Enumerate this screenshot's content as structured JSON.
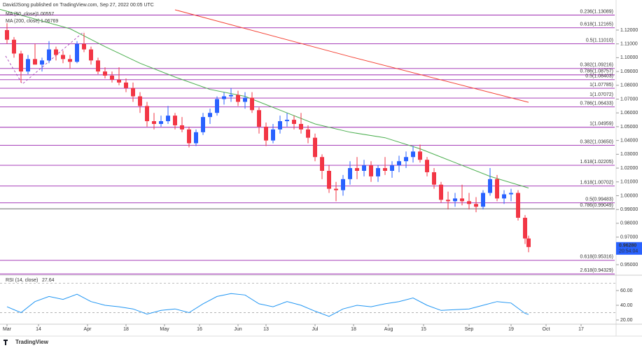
{
  "header": "DavidJSong published on TradingView.com, Sep 27, 2022 00:05 UTC",
  "brand": "TradingView",
  "chart_data": [
    {
      "type": "candlestick",
      "up_color": "#2962ff",
      "down_color": "#f23645",
      "x": [
        0,
        2,
        4,
        6,
        8,
        10,
        12,
        14,
        16,
        18,
        20,
        22,
        24,
        26,
        28,
        30,
        32,
        34,
        36,
        38,
        40,
        42,
        44,
        46,
        48,
        50,
        52,
        54,
        56,
        58,
        60,
        62,
        64,
        66,
        68,
        70,
        72,
        74,
        76,
        78,
        80,
        82,
        84,
        86,
        88,
        90,
        92,
        94,
        96,
        98,
        100,
        102,
        104,
        106,
        108,
        110,
        112,
        114,
        116,
        118,
        120,
        122,
        124,
        126,
        128,
        130,
        132,
        134,
        136,
        138,
        140,
        142,
        144,
        146,
        148,
        149
      ],
      "open": [
        1.12,
        1.113,
        1.103,
        1.09,
        1.099,
        1.095,
        1.098,
        1.106,
        1.102,
        1.099,
        1.097,
        1.11,
        1.106,
        1.098,
        1.09,
        1.087,
        1.084,
        1.082,
        1.078,
        1.072,
        1.065,
        1.054,
        1.052,
        1.054,
        1.058,
        1.051,
        1.048,
        1.038,
        1.046,
        1.057,
        1.06,
        1.07,
        1.072,
        1.073,
        1.068,
        1.071,
        1.062,
        1.05,
        1.04,
        1.048,
        1.054,
        1.055,
        1.052,
        1.048,
        1.042,
        1.028,
        1.018,
        1.005,
        1.004,
        1.012,
        1.02,
        1.018,
        1.022,
        1.014,
        1.02,
        1.018,
        1.022,
        1.025,
        1.028,
        1.032,
        1.026,
        1.017,
        1.008,
        0.997,
        0.996,
        0.998,
        0.996,
        0.994,
        0.992,
        1.002,
        1.012,
        0.998,
        1.001,
        1.002,
        0.984,
        0.969
      ],
      "high": [
        1.125,
        1.115,
        1.105,
        1.102,
        1.11,
        1.1,
        1.112,
        1.108,
        1.105,
        1.102,
        1.112,
        1.118,
        1.108,
        1.1,
        1.093,
        1.09,
        1.093,
        1.085,
        1.082,
        1.075,
        1.068,
        1.06,
        1.058,
        1.065,
        1.06,
        1.057,
        1.05,
        1.048,
        1.06,
        1.063,
        1.072,
        1.075,
        1.078,
        1.076,
        1.075,
        1.075,
        1.064,
        1.053,
        1.052,
        1.058,
        1.06,
        1.058,
        1.06,
        1.051,
        1.045,
        1.03,
        1.022,
        1.01,
        1.015,
        1.025,
        1.028,
        1.026,
        1.025,
        1.022,
        1.028,
        1.025,
        1.029,
        1.032,
        1.036,
        1.037,
        1.028,
        1.02,
        1.01,
        1.003,
        1.002,
        1.008,
        1.002,
        0.999,
        1.004,
        1.02,
        1.015,
        1.004,
        1.005,
        1.004,
        0.986,
        0.971
      ],
      "low": [
        1.11,
        1.1,
        1.082,
        1.088,
        1.095,
        1.09,
        1.096,
        1.098,
        1.096,
        1.092,
        1.096,
        1.104,
        1.095,
        1.088,
        1.085,
        1.082,
        1.08,
        1.075,
        1.068,
        1.06,
        1.05,
        1.048,
        1.05,
        1.052,
        1.048,
        1.046,
        1.035,
        1.036,
        1.044,
        1.052,
        1.058,
        1.066,
        1.068,
        1.065,
        1.063,
        1.06,
        1.045,
        1.036,
        1.038,
        1.045,
        1.05,
        1.048,
        1.045,
        1.038,
        1.025,
        1.012,
        1.002,
        0.996,
        1.0,
        1.008,
        1.012,
        1.014,
        1.01,
        1.01,
        1.015,
        1.013,
        1.017,
        1.02,
        1.024,
        1.024,
        1.014,
        1.005,
        0.995,
        0.99,
        0.992,
        0.993,
        0.99,
        0.988,
        0.99,
        1.0,
        0.996,
        0.994,
        0.996,
        0.982,
        0.965,
        0.959
      ],
      "close": [
        1.113,
        1.103,
        1.09,
        1.099,
        1.095,
        1.098,
        1.106,
        1.102,
        1.099,
        1.097,
        1.11,
        1.106,
        1.098,
        1.09,
        1.087,
        1.084,
        1.082,
        1.078,
        1.072,
        1.065,
        1.054,
        1.052,
        1.054,
        1.058,
        1.051,
        1.048,
        1.038,
        1.046,
        1.057,
        1.06,
        1.07,
        1.072,
        1.073,
        1.068,
        1.071,
        1.062,
        1.05,
        1.04,
        1.048,
        1.054,
        1.055,
        1.052,
        1.048,
        1.042,
        1.028,
        1.018,
        1.005,
        1.004,
        1.012,
        1.02,
        1.018,
        1.022,
        1.014,
        1.02,
        1.018,
        1.022,
        1.025,
        1.028,
        1.032,
        1.026,
        1.017,
        1.008,
        0.997,
        0.996,
        0.998,
        0.996,
        0.994,
        0.992,
        1.002,
        1.012,
        0.998,
        1.001,
        1.002,
        0.984,
        0.969,
        0.9628
      ],
      "last_price_label": "0.96280",
      "countdown": "20:54:04",
      "lines": [
        {
          "name": "MA (50, close)",
          "color": "#4caf50",
          "value_label": "1.00557",
          "x": [
            -2,
            8,
            18,
            28,
            38,
            48,
            58,
            68,
            78,
            88,
            98,
            108,
            118,
            128,
            138,
            149
          ],
          "values": [
            1.135,
            1.128,
            1.121,
            1.108,
            1.096,
            1.086,
            1.077,
            1.072,
            1.062,
            1.052,
            1.046,
            1.042,
            1.034,
            1.024,
            1.014,
            1.00557
          ]
        },
        {
          "name": "MA (200, close)",
          "color": "#f44336",
          "value_label": "1.06769",
          "x": [
            48,
            98,
            149
          ],
          "values": [
            1.1347,
            1.1008,
            1.06769
          ]
        }
      ],
      "levels": [
        {
          "label": "0.236(1.13089)",
          "value": 1.13089,
          "color": "#9c27b0"
        },
        {
          "label": "0.618(1.12165)",
          "value": 1.12165,
          "color": "#9c27b0"
        },
        {
          "label": "0.5(1.11010)",
          "value": 1.1101,
          "color": "#9c27b0"
        },
        {
          "label": "0.382(1.09216)",
          "value": 1.09216,
          "color": "#9c27b0"
        },
        {
          "label": "0.786(1.08757)",
          "value": 1.08757,
          "color": "#9c27b0"
        },
        {
          "label": "0.5(1.08403)",
          "value": 1.08403,
          "color": "#9c27b0"
        },
        {
          "label": "1(1.07785)",
          "value": 1.07785,
          "color": "#9c27b0"
        },
        {
          "label": "1(1.07072)",
          "value": 1.07072,
          "color": "#9c27b0"
        },
        {
          "label": "0.786(1.06433)",
          "value": 1.06433,
          "color": "#9c27b0"
        },
        {
          "label": "1(1.04959)",
          "value": 1.04959,
          "color": "#9c27b0"
        },
        {
          "label": "0.382(1.03650)",
          "value": 1.0365,
          "color": "#9c27b0"
        },
        {
          "label": "1.618(1.02205)",
          "value": 1.02205,
          "color": "#9c27b0"
        },
        {
          "label": "1.618(1.00702)",
          "value": 1.00702,
          "color": "#9c27b0"
        },
        {
          "label": "0.5(0.99483)",
          "value": 0.99483,
          "color": "#9c27b0"
        },
        {
          "label": "0.786(0.99049)",
          "value": 0.99049,
          "color": "#555555"
        },
        {
          "label": "0.618(0.95316)",
          "value": 0.95316,
          "color": "#9c27b0"
        },
        {
          "label": "2.618(0.94329)",
          "value": 0.94329,
          "color": "#9c27b0"
        }
      ],
      "xlim": [
        -2,
        174
      ],
      "ylim": [
        0.9424,
        1.1418
      ],
      "xticks": [
        {
          "value": 0,
          "label": "Mar"
        },
        {
          "value": 9,
          "label": "14"
        },
        {
          "value": 23,
          "label": "Apr"
        },
        {
          "value": 34,
          "label": "18"
        },
        {
          "value": 45,
          "label": "May"
        },
        {
          "value": 55,
          "label": "16"
        },
        {
          "value": 66,
          "label": "Jun"
        },
        {
          "value": 74,
          "label": "13"
        },
        {
          "value": 88,
          "label": "Jul"
        },
        {
          "value": 99,
          "label": "18"
        },
        {
          "value": 109,
          "label": "Aug"
        },
        {
          "value": 119,
          "label": "15"
        },
        {
          "value": 132,
          "label": "Sep"
        },
        {
          "value": 144,
          "label": "19"
        },
        {
          "value": 154,
          "label": "Oct"
        },
        {
          "value": 164,
          "label": "17"
        }
      ],
      "yticks": [
        {
          "value": 0.95,
          "label": "0.95000"
        },
        {
          "value": 0.96,
          "label": "0.96000"
        },
        {
          "value": 0.97,
          "label": "0.97000"
        },
        {
          "value": 0.98,
          "label": "0.98000"
        },
        {
          "value": 0.99,
          "label": "0.99000"
        },
        {
          "value": 1,
          "label": "1.00000"
        },
        {
          "value": 1.01,
          "label": "1.01000"
        },
        {
          "value": 1.02,
          "label": "1.02000"
        },
        {
          "value": 1.03,
          "label": "1.03000"
        },
        {
          "value": 1.04,
          "label": "1.04000"
        },
        {
          "value": 1.05,
          "label": "1.05000"
        },
        {
          "value": 1.06,
          "label": "1.06000"
        },
        {
          "value": 1.07,
          "label": "1.07000"
        },
        {
          "value": 1.08,
          "label": "1.08000"
        },
        {
          "value": 1.09,
          "label": "1.09000"
        },
        {
          "value": 1.1,
          "label": "1.10000"
        },
        {
          "value": 1.11,
          "label": "1.11000"
        },
        {
          "value": 1.12,
          "label": "1.12000"
        }
      ]
    },
    {
      "type": "line",
      "name": "RSI (14, close)",
      "color": "#2196f3",
      "value_label": "27.64",
      "x": [
        0,
        4,
        8,
        12,
        16,
        20,
        24,
        28,
        32,
        36,
        40,
        44,
        48,
        52,
        56,
        60,
        64,
        68,
        72,
        76,
        80,
        84,
        88,
        92,
        96,
        100,
        104,
        108,
        112,
        116,
        120,
        124,
        128,
        132,
        136,
        140,
        144,
        148,
        149
      ],
      "values": [
        38,
        30,
        45,
        52,
        48,
        55,
        45,
        40,
        38,
        35,
        28,
        33,
        35,
        30,
        42,
        52,
        56,
        54,
        42,
        38,
        45,
        40,
        32,
        25,
        35,
        40,
        38,
        42,
        45,
        50,
        40,
        33,
        34,
        35,
        40,
        45,
        43,
        29,
        27.64
      ],
      "xlim": [
        -2,
        174
      ],
      "ylim": [
        14.3,
        79
      ],
      "bands": [
        30,
        70
      ],
      "yticks": [
        {
          "value": 20,
          "label": "20.00"
        },
        {
          "value": 40,
          "label": "40.00"
        },
        {
          "value": 60,
          "label": "60.00"
        }
      ]
    }
  ]
}
